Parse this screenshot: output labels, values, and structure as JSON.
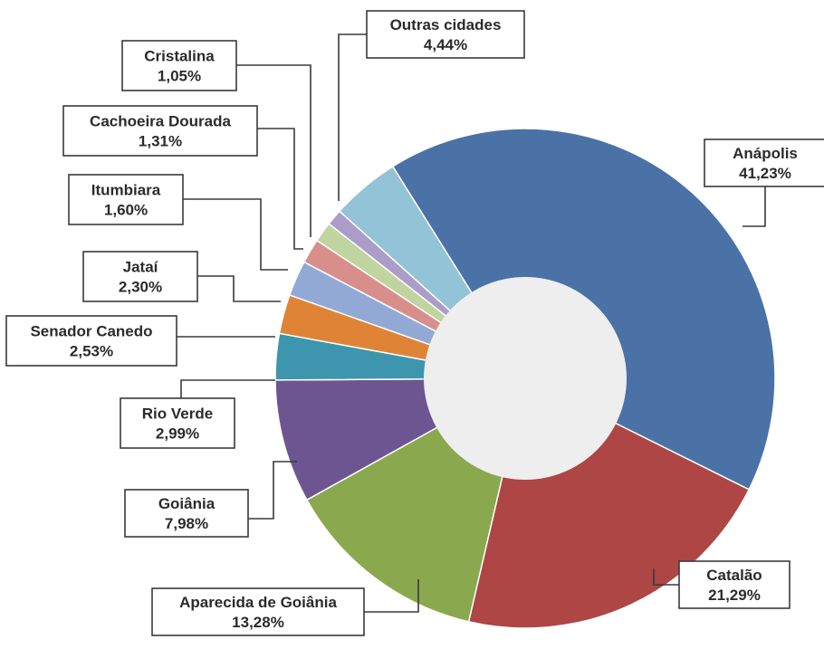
{
  "chart_data": {
    "type": "pie",
    "variant": "donut",
    "categories": [
      "Anápolis",
      "Catalão",
      "Aparecida de Goiânia",
      "Goiânia",
      "Rio Verde",
      "Senador Canedo",
      "Jataí",
      "Itumbiara",
      "Cachoeira Dourada",
      "Cristalina",
      "Outras cidades"
    ],
    "values": [
      41.23,
      21.29,
      13.28,
      7.98,
      2.99,
      2.53,
      2.3,
      1.6,
      1.31,
      1.05,
      4.44
    ],
    "value_labels": [
      "41,23%",
      "21,29%",
      "13,28%",
      "7,98%",
      "2,99%",
      "2,53%",
      "2,30%",
      "1,60%",
      "1,31%",
      "1,05%",
      "4,44%"
    ],
    "colors": [
      "#4a72a6",
      "#ad4645",
      "#8aa84e",
      "#6d5592",
      "#3d96ad",
      "#df8437",
      "#93a9d5",
      "#d88f8c",
      "#bfd49f",
      "#ab9dc8",
      "#93c3d7"
    ],
    "center_color": "#eeeeee",
    "labels_style": "boxed callouts with leader lines"
  }
}
